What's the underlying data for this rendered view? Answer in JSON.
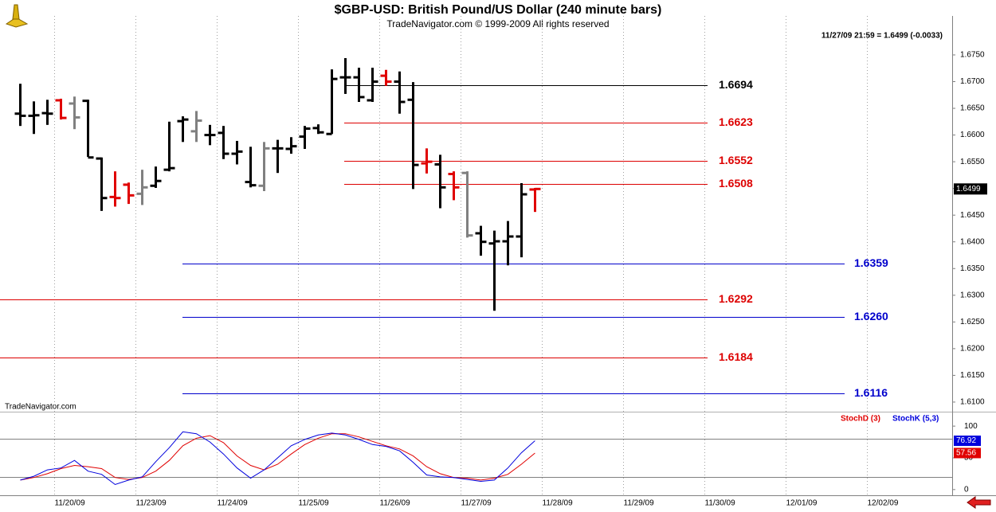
{
  "chart_data": [
    {
      "type": "ohlc",
      "title": "$GBP-USD:  British Pound/US Dollar  (240 minute bars)",
      "subtitle": "TradeNavigator.com © 1999-2009 All rights reserved",
      "header": "11/27/09 21:59 = 1.6499 (-0.0033)",
      "watermark": "TradeNavigator.com",
      "open": [
        1.664,
        1.6636,
        1.6641,
        1.6665,
        1.6659,
        1.6664,
        1.6556,
        1.6484,
        1.6507,
        1.649,
        1.6505,
        1.6535,
        1.6626,
        1.6607,
        1.66,
        1.6604,
        1.6565,
        1.6512,
        1.6505,
        1.6575,
        1.6574,
        1.6597,
        1.6613,
        1.6602,
        1.6708,
        1.6708,
        1.6665,
        1.6711,
        1.67,
        1.6666,
        1.6547,
        1.6545,
        1.6527,
        1.6529,
        1.6416,
        1.6397,
        1.6401,
        1.641,
        1.6498
      ],
      "high": [
        1.6696,
        1.6663,
        1.6666,
        1.6668,
        1.6672,
        1.6666,
        1.6558,
        1.6532,
        1.6511,
        1.6535,
        1.6541,
        1.6625,
        1.6635,
        1.6645,
        1.6619,
        1.6617,
        1.6589,
        1.6578,
        1.6587,
        1.6591,
        1.6596,
        1.6617,
        1.662,
        1.6723,
        1.6744,
        1.6726,
        1.6726,
        1.6722,
        1.6719,
        1.6699,
        1.6575,
        1.6563,
        1.6532,
        1.6532,
        1.643,
        1.6421,
        1.6439,
        1.651,
        1.6501
      ],
      "low": [
        1.6617,
        1.6602,
        1.6619,
        1.6629,
        1.6611,
        1.6559,
        1.6458,
        1.6466,
        1.6471,
        1.6469,
        1.6501,
        1.6532,
        1.6587,
        1.6587,
        1.6581,
        1.6555,
        1.6545,
        1.6502,
        1.6495,
        1.6529,
        1.6565,
        1.6574,
        1.6602,
        1.6602,
        1.6677,
        1.6662,
        1.6662,
        1.6692,
        1.664,
        1.6499,
        1.6528,
        1.6463,
        1.6478,
        1.6408,
        1.6374,
        1.6271,
        1.6356,
        1.6371,
        1.6456
      ],
      "close": [
        1.6636,
        1.6637,
        1.664,
        1.6632,
        1.6633,
        1.6558,
        1.6482,
        1.6482,
        1.6487,
        1.6502,
        1.6514,
        1.6538,
        1.6629,
        1.6627,
        1.66,
        1.6565,
        1.6569,
        1.6506,
        1.6575,
        1.6575,
        1.6579,
        1.6612,
        1.6605,
        1.6705,
        1.6708,
        1.6671,
        1.67,
        1.67,
        1.6662,
        1.6544,
        1.655,
        1.6502,
        1.6502,
        1.6412,
        1.64,
        1.6401,
        1.641,
        1.6489,
        1.6499
      ],
      "bar_colors": [
        "#000000",
        "#000000",
        "#000000",
        "#e00000",
        "#808080",
        "#000000",
        "#000000",
        "#e00000",
        "#e00000",
        "#808080",
        "#000000",
        "#000000",
        "#000000",
        "#808080",
        "#000000",
        "#000000",
        "#000000",
        "#000000",
        "#808080",
        "#000000",
        "#000000",
        "#000000",
        "#000000",
        "#000000",
        "#000000",
        "#000000",
        "#000000",
        "#e00000",
        "#000000",
        "#000000",
        "#e00000",
        "#000000",
        "#e00000",
        "#808080",
        "#000000",
        "#000000",
        "#000000",
        "#000000",
        "#e00000"
      ],
      "levels": [
        {
          "value": 1.6694,
          "label": "1.6694",
          "color": "#000000"
        },
        {
          "value": 1.6623,
          "label": "1.6623",
          "color": "#dd0000"
        },
        {
          "value": 1.6552,
          "label": "1.6552",
          "color": "#dd0000"
        },
        {
          "value": 1.6508,
          "label": "1.6508",
          "color": "#dd0000"
        },
        {
          "value": 1.6359,
          "label": "1.6359",
          "color": "#0000cc"
        },
        {
          "value": 1.6292,
          "label": "1.6292",
          "color": "#dd0000"
        },
        {
          "value": 1.626,
          "label": "1.6260",
          "color": "#0000cc"
        },
        {
          "value": 1.6184,
          "label": "1.6184",
          "color": "#dd0000"
        },
        {
          "value": 1.6116,
          "label": "1.6116",
          "color": "#0000cc"
        }
      ],
      "last_price": {
        "value": 1.6499,
        "label": "1.6499"
      },
      "ylim": [
        1.6085,
        1.6823
      ],
      "yticks": [
        {
          "value": 1.61,
          "label": "1.6100"
        },
        {
          "value": 1.615,
          "label": "1.6150"
        },
        {
          "value": 1.62,
          "label": "1.6200"
        },
        {
          "value": 1.625,
          "label": "1.6250"
        },
        {
          "value": 1.63,
          "label": "1.6300"
        },
        {
          "value": 1.635,
          "label": "1.6350"
        },
        {
          "value": 1.64,
          "label": "1.6400"
        },
        {
          "value": 1.645,
          "label": "1.6450"
        },
        {
          "value": 1.65,
          "label": "1.6500"
        },
        {
          "value": 1.655,
          "label": "1.6550"
        },
        {
          "value": 1.66,
          "label": "1.6600"
        },
        {
          "value": 1.665,
          "label": "1.6650"
        },
        {
          "value": 1.67,
          "label": "1.6700"
        },
        {
          "value": 1.675,
          "label": "1.6750"
        }
      ]
    },
    {
      "type": "line",
      "series": [
        {
          "name": "StochD (3)",
          "color": "#e00000",
          "values": [
            15,
            19,
            25,
            33,
            38,
            36,
            33,
            19,
            16,
            19,
            29,
            46,
            69,
            81,
            85,
            74,
            53,
            38,
            31,
            40,
            56,
            71,
            81,
            88,
            88,
            83,
            76,
            69,
            64,
            53,
            36,
            25,
            19,
            18,
            15,
            18,
            24,
            40,
            57.56
          ]
        },
        {
          "name": "StochK (5,3)",
          "color": "#0000dd",
          "values": [
            15,
            21,
            31,
            34,
            46,
            29,
            24,
            8,
            15,
            20,
            44,
            66,
            91,
            88,
            75,
            56,
            34,
            18,
            31,
            50,
            69,
            79,
            86,
            89,
            86,
            79,
            71,
            68,
            61,
            43,
            23,
            20,
            19,
            16,
            13,
            15,
            34,
            58,
            76.92
          ]
        }
      ],
      "reference_lines": [
        20,
        80
      ],
      "ylim": [
        -9,
        119
      ],
      "yticks": [
        0,
        50,
        100
      ],
      "xlim": [
        -1.5,
        68.8
      ],
      "xticks": [
        {
          "value": 2.5,
          "label": "11/20/09"
        },
        {
          "value": 8.5,
          "label": "11/23/09"
        },
        {
          "value": 14.5,
          "label": "11/24/09"
        },
        {
          "value": 20.5,
          "label": "11/25/09"
        },
        {
          "value": 26.5,
          "label": "11/26/09"
        },
        {
          "value": 32.5,
          "label": "11/27/09"
        },
        {
          "value": 38.5,
          "label": "11/28/09"
        },
        {
          "value": 44.5,
          "label": "11/29/09"
        },
        {
          "value": 50.5,
          "label": "11/30/09"
        },
        {
          "value": 56.5,
          "label": "12/01/09"
        },
        {
          "value": 62.5,
          "label": "12/02/09"
        }
      ]
    }
  ]
}
